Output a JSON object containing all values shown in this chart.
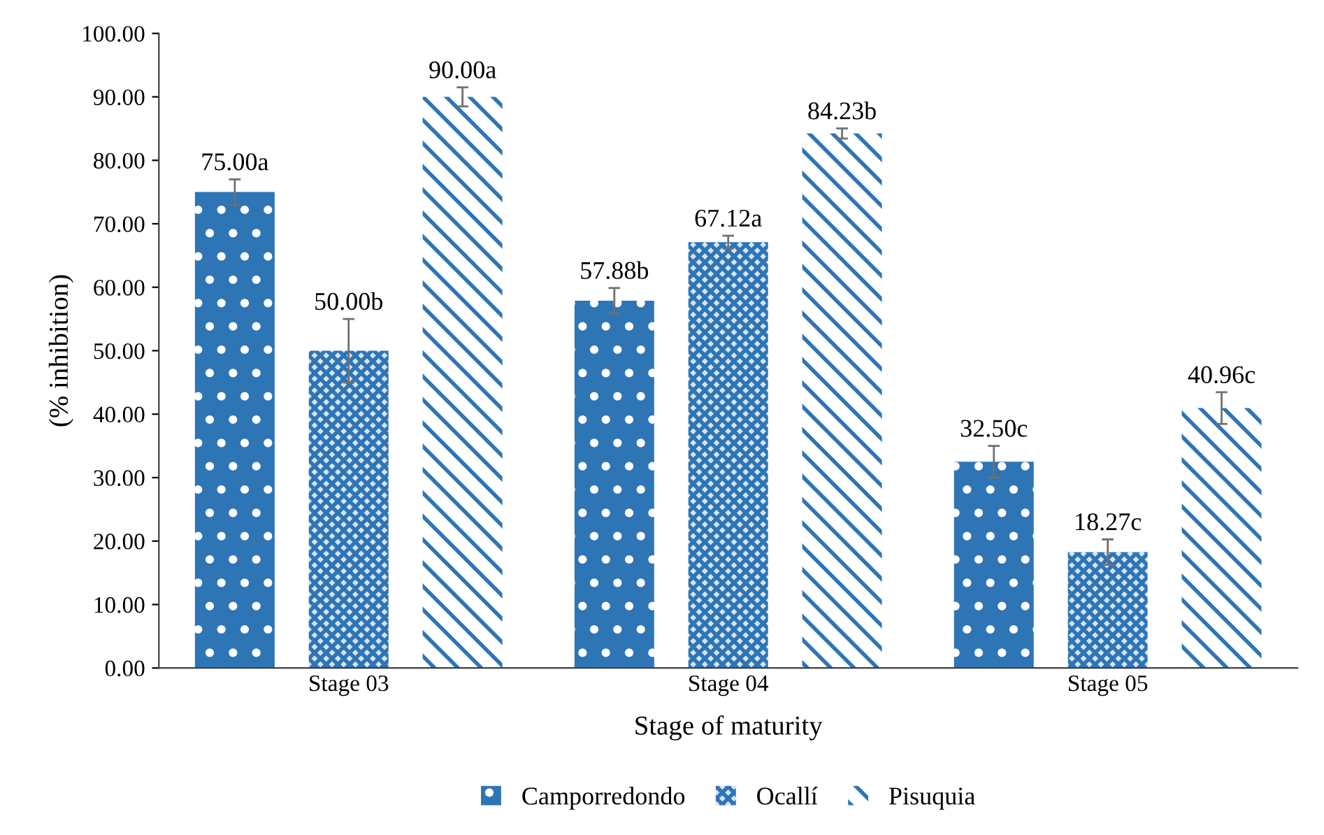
{
  "chart_data": {
    "type": "bar",
    "xlabel": "Stage of maturity",
    "ylabel": "(% inhibition)",
    "categories": [
      "Stage 03",
      "Stage 04",
      "Stage 05"
    ],
    "series": [
      {
        "name": "Camporredondo",
        "color": "#2e75b6",
        "values": [
          75.0,
          57.88,
          32.5
        ],
        "errors": [
          2.0,
          2.0,
          2.5
        ],
        "value_labels": [
          "75.00a",
          "57.88b",
          "32.50c"
        ]
      },
      {
        "name": "Ocallí",
        "color": "#2e75b6",
        "values": [
          50.0,
          67.12,
          18.27
        ],
        "errors": [
          5.0,
          1.0,
          2.0
        ],
        "value_labels": [
          "50.00b",
          "67.12a",
          "18.27c"
        ]
      },
      {
        "name": "Pisuquia",
        "color": "#2e75b6",
        "values": [
          90.0,
          84.23,
          40.96
        ],
        "errors": [
          1.5,
          0.8,
          2.5
        ],
        "value_labels": [
          "90.00a",
          "84.23b",
          "40.96c"
        ]
      }
    ],
    "ylim": [
      0,
      100
    ],
    "yticks": [
      {
        "value": 0,
        "label": "0.00"
      },
      {
        "value": 10,
        "label": "10.00"
      },
      {
        "value": 20,
        "label": "20.00"
      },
      {
        "value": 30,
        "label": "30.00"
      },
      {
        "value": 40,
        "label": "40.00"
      },
      {
        "value": 50,
        "label": "50.00"
      },
      {
        "value": 60,
        "label": "60.00"
      },
      {
        "value": 70,
        "label": "70.00"
      },
      {
        "value": 80,
        "label": "80.00"
      },
      {
        "value": 90,
        "label": "90.00"
      },
      {
        "value": 100,
        "label": "100.00"
      }
    ],
    "grid": false,
    "legend": "bottom"
  }
}
